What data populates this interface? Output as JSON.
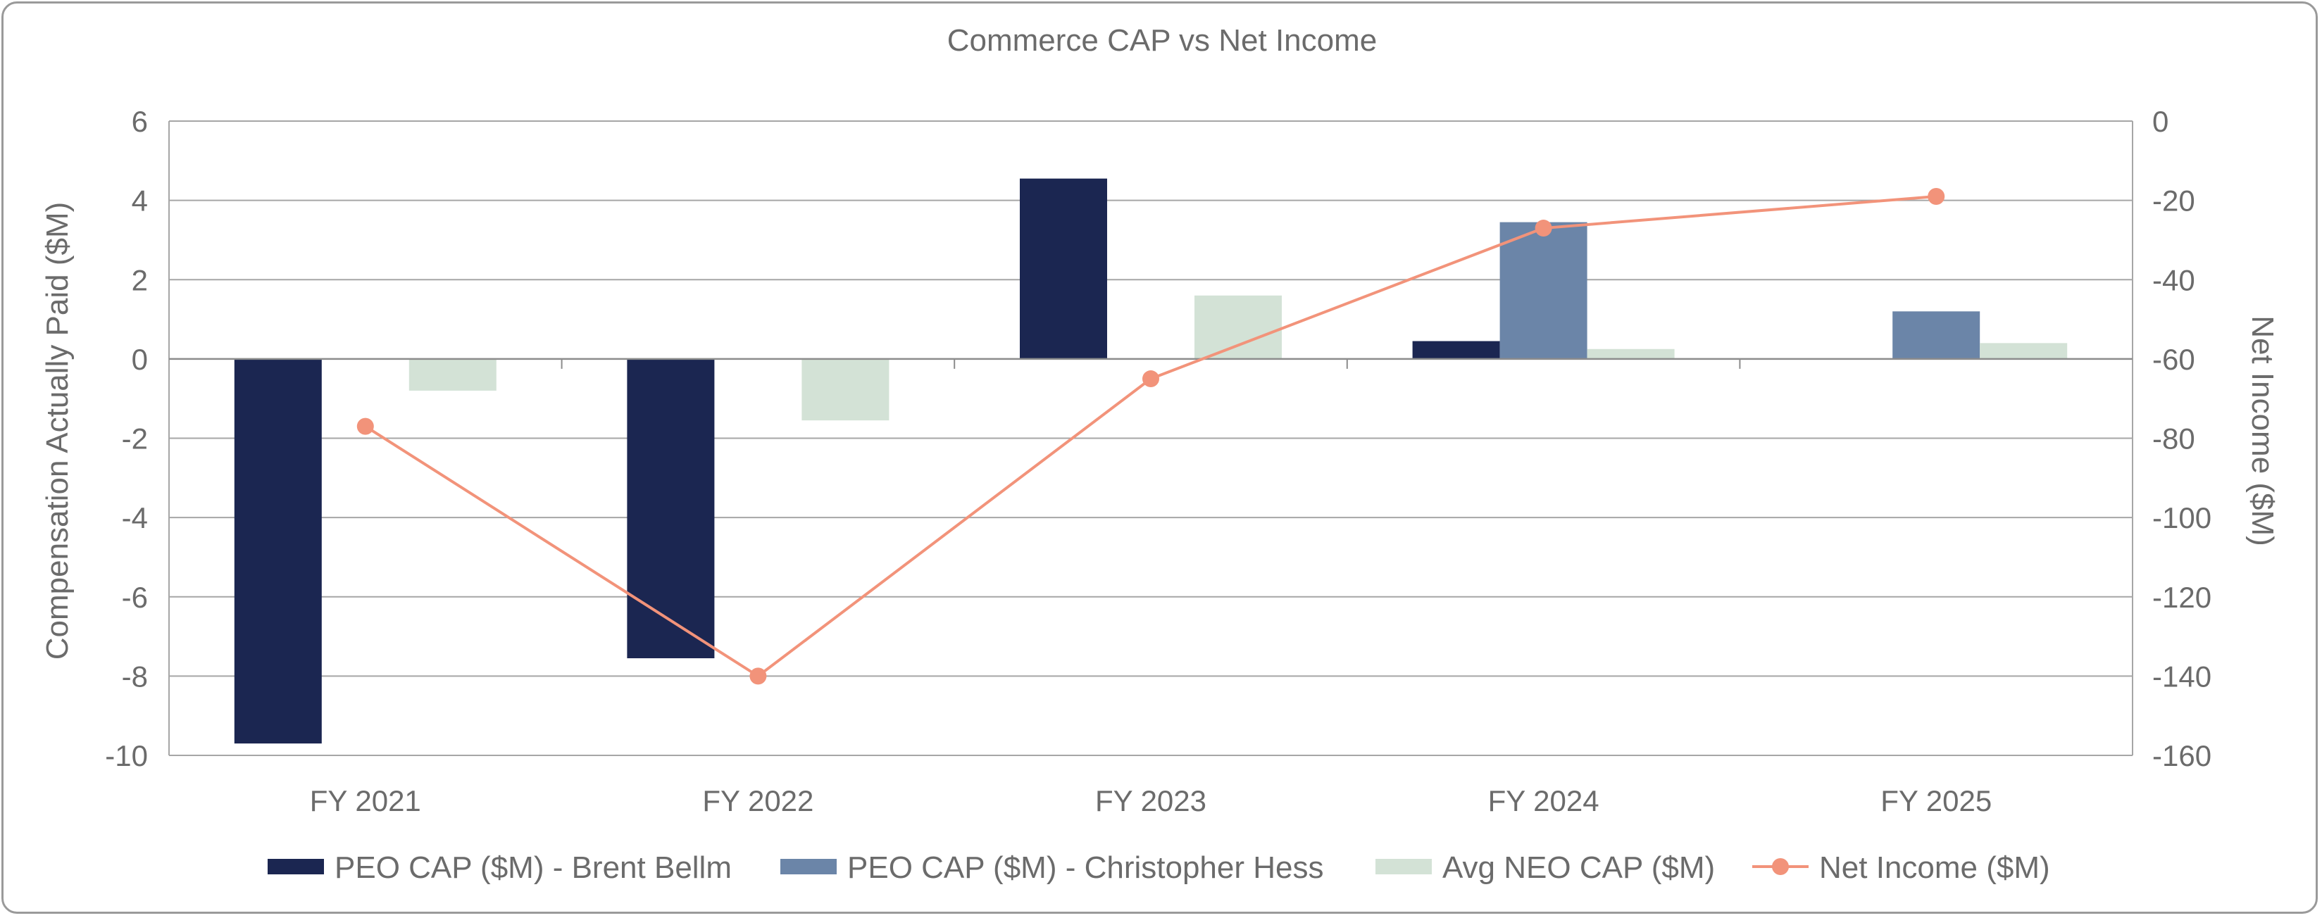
{
  "chart_data": {
    "type": "bar",
    "title": "Commerce CAP vs Net Income",
    "categories": [
      "FY 2021",
      "FY 2022",
      "FY 2023",
      "FY 2024",
      "FY 2025"
    ],
    "ylabel": "Compensation Actually Paid ($M)",
    "y2label": "Net Income ($M)",
    "ylim": [
      -10,
      6
    ],
    "yticks": [
      6,
      4,
      2,
      0,
      -2,
      -4,
      -6,
      -8,
      -10
    ],
    "y2lim": [
      -160,
      0
    ],
    "y2ticks": [
      0,
      -20,
      -40,
      -60,
      -80,
      -100,
      -120,
      -140,
      -160
    ],
    "grid": true,
    "legend_position": "bottom",
    "series": [
      {
        "name": "PEO CAP ($M) - Brent Bellm",
        "type": "bar",
        "axis": "left",
        "color": "#1b2651",
        "values": [
          -9.7,
          -7.55,
          4.55,
          0.45,
          null
        ]
      },
      {
        "name": "PEO CAP ($M) - Christopher Hess",
        "type": "bar",
        "axis": "left",
        "color": "#6b85a8",
        "values": [
          null,
          null,
          null,
          3.45,
          1.2
        ]
      },
      {
        "name": "Avg NEO CAP ($M)",
        "type": "bar",
        "axis": "left",
        "color": "#d3e2d6",
        "values": [
          -0.8,
          -1.55,
          1.6,
          0.25,
          0.4
        ]
      },
      {
        "name": "Net Income ($M)",
        "type": "line",
        "axis": "right",
        "color": "#f2937a",
        "values": [
          -77,
          -140,
          -65,
          -27,
          -19
        ]
      }
    ]
  }
}
